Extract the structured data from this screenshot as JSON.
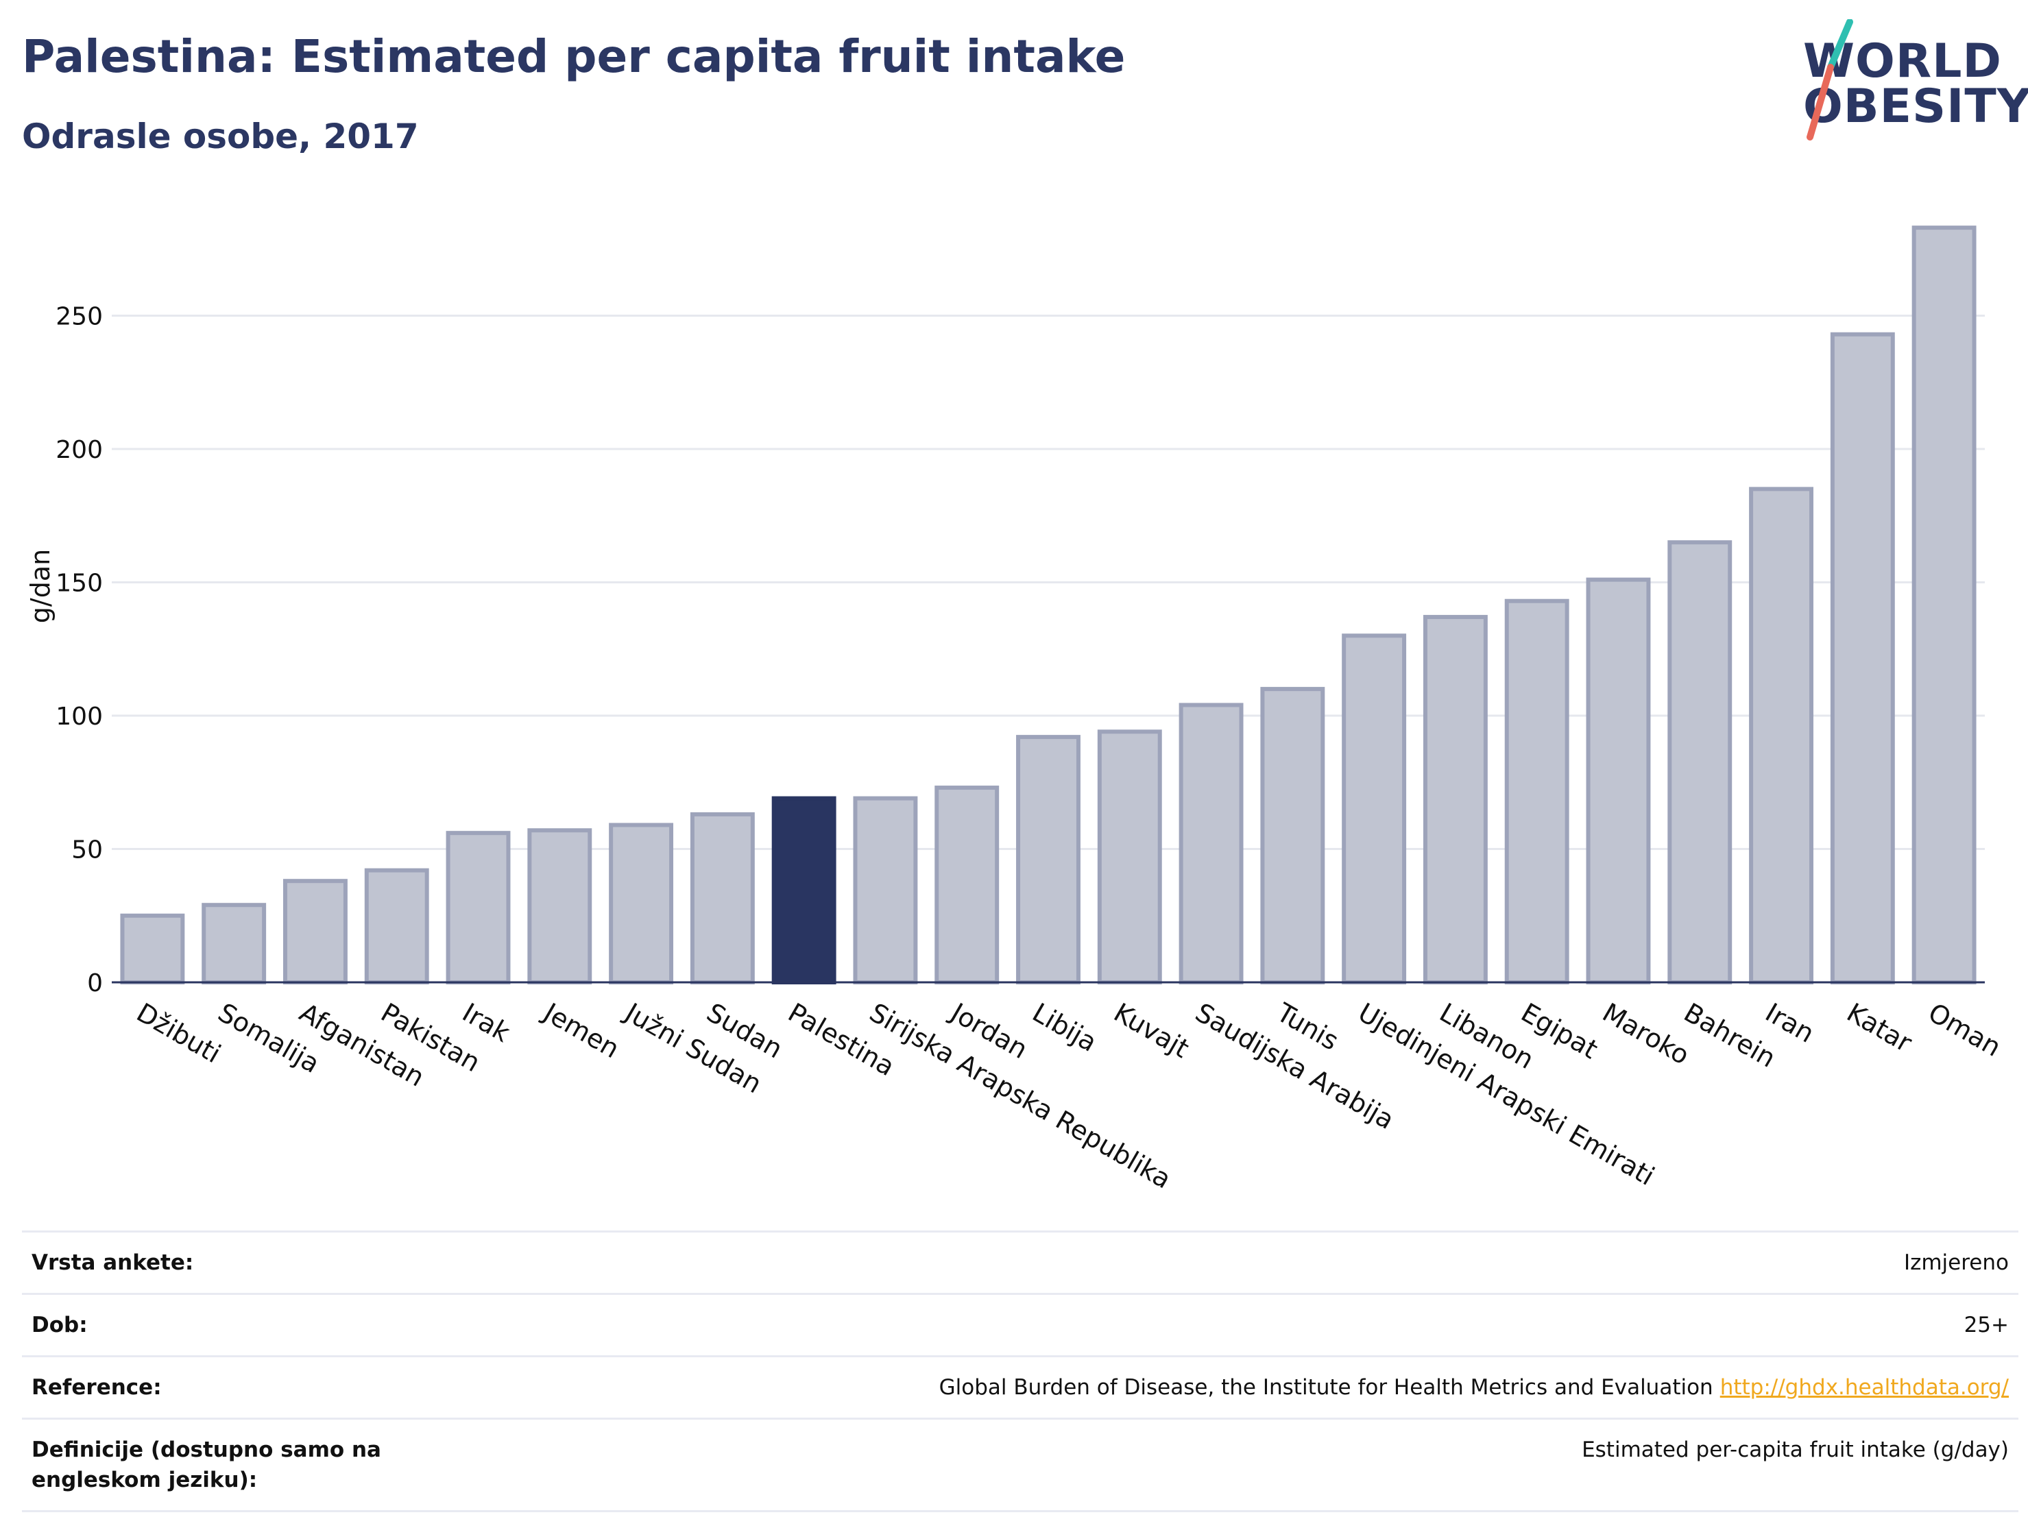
{
  "header": {
    "title": "Palestina: Estimated per capita fruit intake",
    "subtitle": "Odrasle osobe, 2017"
  },
  "logo": {
    "line1": "WORLD",
    "line2": "OBESITY",
    "colors": {
      "text": "#2b3763",
      "slash_top": "#2fbfb1",
      "slash_bottom": "#e8695a"
    }
  },
  "chart_data": {
    "type": "bar",
    "ylabel": "g/dan",
    "ylim": [
      0,
      290
    ],
    "yticks": [
      0,
      50,
      100,
      150,
      200,
      250
    ],
    "grid": true,
    "highlight": "Palestina",
    "colors": {
      "bar": "#c0c4d1",
      "bar_border": "#9da3ba",
      "highlight": "#293561",
      "grid": "#e6e8ee",
      "axis": "#2a3560"
    },
    "categories": [
      "Džibuti",
      "Somalija",
      "Afganistan",
      "Pakistan",
      "Irak",
      "Jemen",
      "Južni Sudan",
      "Sudan",
      "Palestina",
      "Sirijska Arapska Republika",
      "Jordan",
      "Libija",
      "Kuvajt",
      "Saudijska Arabija",
      "Tunis",
      "Ujedinjeni Arapski Emirati",
      "Libanon",
      "Egipat",
      "Maroko",
      "Bahrein",
      "Iran",
      "Katar",
      "Oman"
    ],
    "values": [
      25,
      29,
      38,
      42,
      56,
      57,
      59,
      63,
      69,
      69,
      73,
      92,
      94,
      104,
      110,
      130,
      137,
      143,
      151,
      165,
      185,
      243,
      283
    ]
  },
  "footer": {
    "rows": [
      {
        "label": "Vrsta ankete:",
        "value": "Izmjereno"
      },
      {
        "label": "Dob:",
        "value": "25+"
      },
      {
        "label": "Reference:",
        "value": "Global Burden of Disease, the Institute for Health Metrics and Evaluation",
        "link": "http://ghdx.healthdata.org/"
      },
      {
        "label": "Definicije (dostupno samo na engleskom jeziku):",
        "value": "Estimated per-capita fruit intake (g/day)"
      }
    ]
  }
}
